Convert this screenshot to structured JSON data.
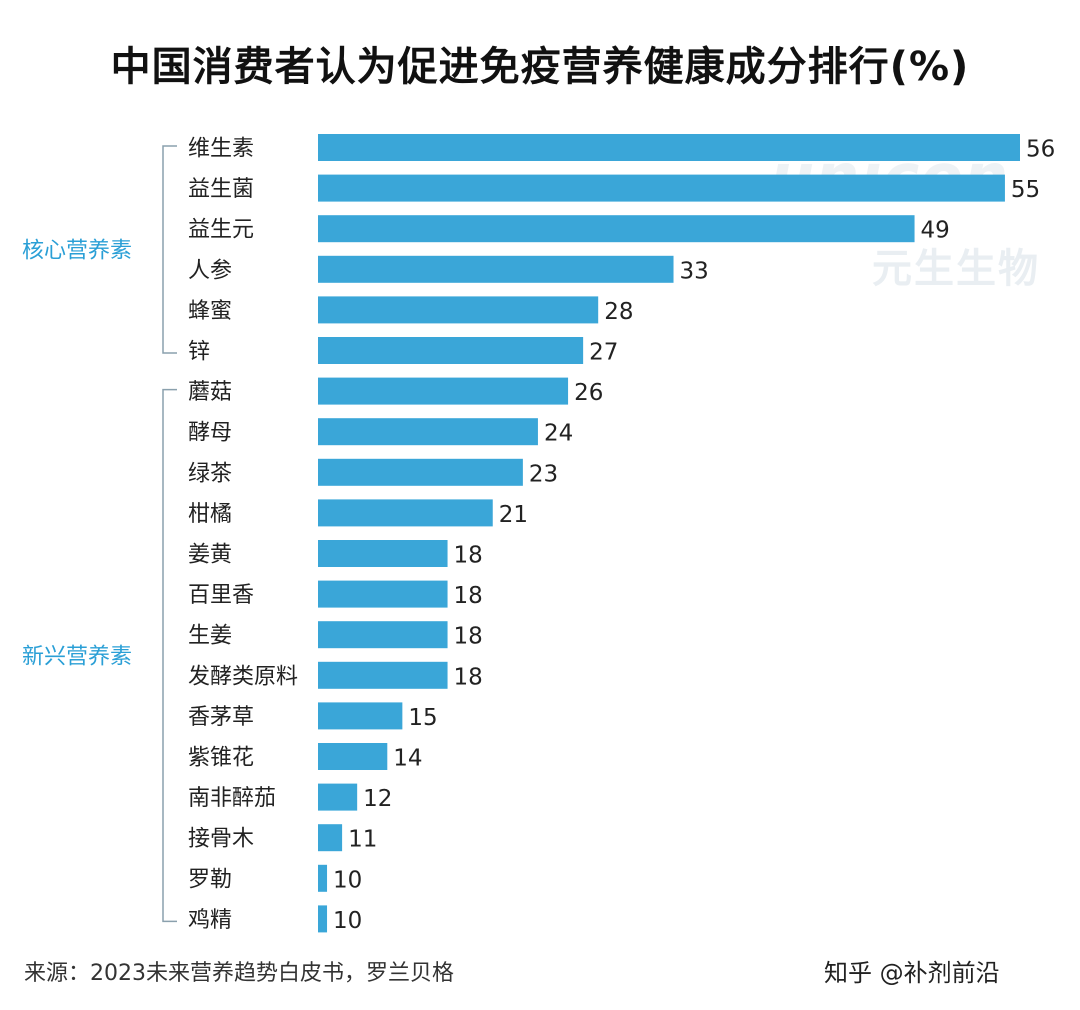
{
  "chart_data": {
    "type": "bar",
    "orientation": "horizontal",
    "title": "中国消费者认为促进免疫营养健康成分排行(%)",
    "categories": [
      "维生素",
      "益生菌",
      "益生元",
      "人参",
      "蜂蜜",
      "锌",
      "蘑菇",
      "酵母",
      "绿茶",
      "柑橘",
      "姜黄",
      "百里香",
      "生姜",
      "发酵类原料",
      "香茅草",
      "紫锥花",
      "南非醉茄",
      "接骨木",
      "罗勒",
      "鸡精"
    ],
    "values": [
      56,
      55,
      49,
      33,
      28,
      27,
      26,
      24,
      23,
      21,
      18,
      18,
      18,
      18,
      15,
      14,
      12,
      11,
      10,
      10
    ],
    "xlim": [
      9.4,
      56
    ],
    "groups": [
      {
        "label": "核心营养素",
        "start": 0,
        "end": 5
      },
      {
        "label": "新兴营养素",
        "start": 6,
        "end": 19
      }
    ],
    "bar_color": "#3aa6d8",
    "group_label_color": "#2a9fd6"
  },
  "watermark": {
    "logo": "unicon",
    "text": "元生生物"
  },
  "footer": {
    "source": "来源：2023未来营养趋势白皮书，罗兰贝格",
    "credit": "知乎 @补剂前沿"
  }
}
